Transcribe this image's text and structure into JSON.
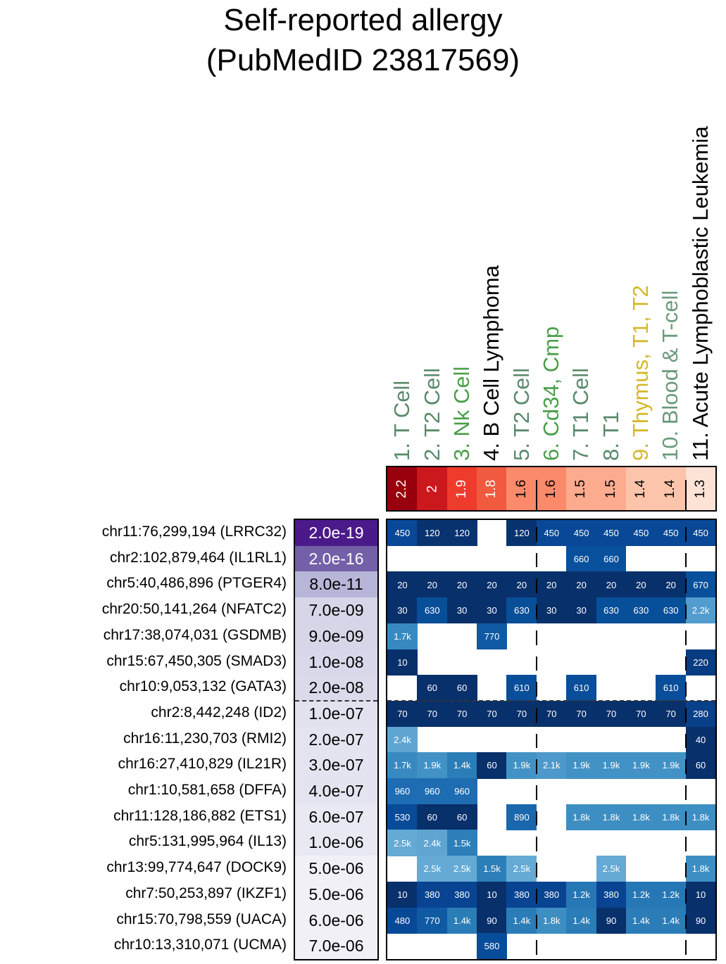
{
  "chart_data": {
    "type": "heatmap",
    "title": [
      "Self-reported allergy",
      "(PubMedID 23817569)"
    ],
    "columns": [
      {
        "label": "1. T Cell",
        "color": "#5a8a6a",
        "enrichment": "2.2"
      },
      {
        "label": "2. T2 Cell",
        "color": "#5a8a6a",
        "enrichment": "2"
      },
      {
        "label": "3. Nk Cell",
        "color": "#4a9f4a",
        "enrichment": "1.9"
      },
      {
        "label": "4. B Cell Lymphoma",
        "color": "#000000",
        "enrichment": "1.8"
      },
      {
        "label": "5. T2 Cell",
        "color": "#5a8a6a",
        "enrichment": "1.6"
      },
      {
        "label": "6. Cd34, Cmp",
        "color": "#4a9f4a",
        "enrichment": "1.6"
      },
      {
        "label": "7. T1 Cell",
        "color": "#5a8a6a",
        "enrichment": "1.5"
      },
      {
        "label": "8. T1",
        "color": "#5a8a6a",
        "enrichment": "1.5"
      },
      {
        "label": "9. Thymus, T1, T2",
        "color": "#d4b82a",
        "enrichment": "1.4"
      },
      {
        "label": "10. Blood & T-cell",
        "color": "#6a9a7a",
        "enrichment": "1.4"
      },
      {
        "label": "11. Acute Lymphoblastic Leukemia",
        "color": "#000000",
        "enrichment": "1.3"
      }
    ],
    "enrichment_colors": [
      "#99000d",
      "#cb181d",
      "#ef3b2c",
      "#f05a3f",
      "#fb8a6a",
      "#fb8a6a",
      "#fcab8f",
      "#fcab8f",
      "#fcc4aa",
      "#fcc4aa",
      "#fde3d6"
    ],
    "rows": [
      {
        "label": "chr11:76,299,194 (LRRC32)",
        "pvalue": "2.0e-19",
        "pcolor": "#4b1a8a",
        "ptext": "#ffffff",
        "values": [
          "450",
          "120",
          "120",
          "",
          "120",
          "450",
          "450",
          "450",
          "450",
          "450",
          "450"
        ]
      },
      {
        "label": "chr2:102,879,464 (IL1RL1)",
        "pvalue": "2.0e-16",
        "pcolor": "#7460a8",
        "ptext": "#ffffff",
        "values": [
          "",
          "",
          "",
          "",
          "",
          "",
          "660",
          "660",
          "",
          "",
          ""
        ]
      },
      {
        "label": "chr5:40,486,896 (PTGER4)",
        "pvalue": "8.0e-11",
        "pcolor": "#b8b6d8",
        "ptext": "#000000",
        "values": [
          "20",
          "20",
          "20",
          "20",
          "20",
          "20",
          "20",
          "20",
          "20",
          "20",
          "670"
        ]
      },
      {
        "label": "chr20:50,141,264 (NFATC2)",
        "pvalue": "7.0e-09",
        "pcolor": "#d6d6e8",
        "ptext": "#000000",
        "values": [
          "30",
          "630",
          "30",
          "30",
          "630",
          "30",
          "30",
          "630",
          "630",
          "630",
          "2.2k"
        ]
      },
      {
        "label": "chr17:38,074,031 (GSDMB)",
        "pvalue": "9.0e-09",
        "pcolor": "#d6d6e8",
        "ptext": "#000000",
        "values": [
          "1.7k",
          "",
          "",
          "770",
          "",
          "",
          "",
          "",
          "",
          "",
          ""
        ]
      },
      {
        "label": "chr15:67,450,305 (SMAD3)",
        "pvalue": "1.0e-08",
        "pcolor": "#d8d8ea",
        "ptext": "#000000",
        "values": [
          "10",
          "",
          "",
          "",
          "",
          "",
          "",
          "",
          "",
          "",
          "220"
        ]
      },
      {
        "label": "chr10:9,053,132 (GATA3)",
        "pvalue": "2.0e-08",
        "pcolor": "#dadaeb",
        "ptext": "#000000",
        "values": [
          "",
          "60",
          "60",
          "",
          "610",
          "",
          "610",
          "",
          "",
          "610",
          ""
        ]
      },
      {
        "label": "chr2:8,442,248 (ID2)",
        "pvalue": "1.0e-07",
        "pcolor": "#e2e2ef",
        "ptext": "#000000",
        "values": [
          "70",
          "70",
          "70",
          "70",
          "70",
          "70",
          "70",
          "70",
          "70",
          "70",
          "280"
        ]
      },
      {
        "label": "chr16:11,230,703 (RMI2)",
        "pvalue": "2.0e-07",
        "pcolor": "#e4e4f0",
        "ptext": "#000000",
        "values": [
          "2.4k",
          "",
          "",
          "",
          "",
          "",
          "",
          "",
          "",
          "",
          "40"
        ]
      },
      {
        "label": "chr16:27,410,829 (IL21R)",
        "pvalue": "3.0e-07",
        "pcolor": "#e4e4f0",
        "ptext": "#000000",
        "values": [
          "1.7k",
          "1.9k",
          "1.4k",
          "60",
          "1.9k",
          "2.1k",
          "1.9k",
          "1.9k",
          "1.9k",
          "1.9k",
          "60"
        ]
      },
      {
        "label": "chr1:10,581,658 (DFFA)",
        "pvalue": "4.0e-07",
        "pcolor": "#e4e4f0",
        "ptext": "#000000",
        "values": [
          "960",
          "960",
          "960",
          "",
          "",
          "",
          "",
          "",
          "",
          "",
          ""
        ]
      },
      {
        "label": "chr11:128,186,882 (ETS1)",
        "pvalue": "6.0e-07",
        "pcolor": "#e9e9f3",
        "ptext": "#000000",
        "values": [
          "530",
          "60",
          "60",
          "",
          "890",
          "",
          "1.8k",
          "1.8k",
          "1.8k",
          "1.8k",
          "1.8k"
        ]
      },
      {
        "label": "chr5:131,995,964 (IL13)",
        "pvalue": "1.0e-06",
        "pcolor": "#e9e9f3",
        "ptext": "#000000",
        "values": [
          "2.5k",
          "2.4k",
          "1.5k",
          "",
          "",
          "",
          "",
          "",
          "",
          "",
          ""
        ]
      },
      {
        "label": "chr13:99,774,647 (DOCK9)",
        "pvalue": "5.0e-06",
        "pcolor": "#f1f0f7",
        "ptext": "#000000",
        "values": [
          "",
          "2.5k",
          "2.5k",
          "1.5k",
          "2.5k",
          "",
          "",
          "2.5k",
          "",
          "",
          "1.8k"
        ]
      },
      {
        "label": "chr7:50,253,897 (IKZF1)",
        "pvalue": "5.0e-06",
        "pcolor": "#f1f0f7",
        "ptext": "#000000",
        "values": [
          "10",
          "380",
          "380",
          "10",
          "380",
          "380",
          "1.2k",
          "380",
          "1.2k",
          "1.2k",
          "10"
        ]
      },
      {
        "label": "chr15:70,798,559 (UACA)",
        "pvalue": "6.0e-06",
        "pcolor": "#f1f0f7",
        "ptext": "#000000",
        "values": [
          "480",
          "770",
          "1.4k",
          "90",
          "1.4k",
          "1.8k",
          "1.4k",
          "90",
          "1.4k",
          "1.4k",
          "90"
        ]
      },
      {
        "label": "chr10:13,310,071 (UCMA)",
        "pvalue": "7.0e-06",
        "pcolor": "#f1f0f7",
        "ptext": "#000000",
        "values": [
          "",
          "",
          "",
          "580",
          "",
          "",
          "",
          "",
          "",
          "",
          ""
        ]
      }
    ],
    "significance_divider_after_row": 7,
    "column_dividers_after_cols": [
      5,
      10
    ],
    "cell_color_scale": "Blues (darker = smaller distance value)"
  }
}
